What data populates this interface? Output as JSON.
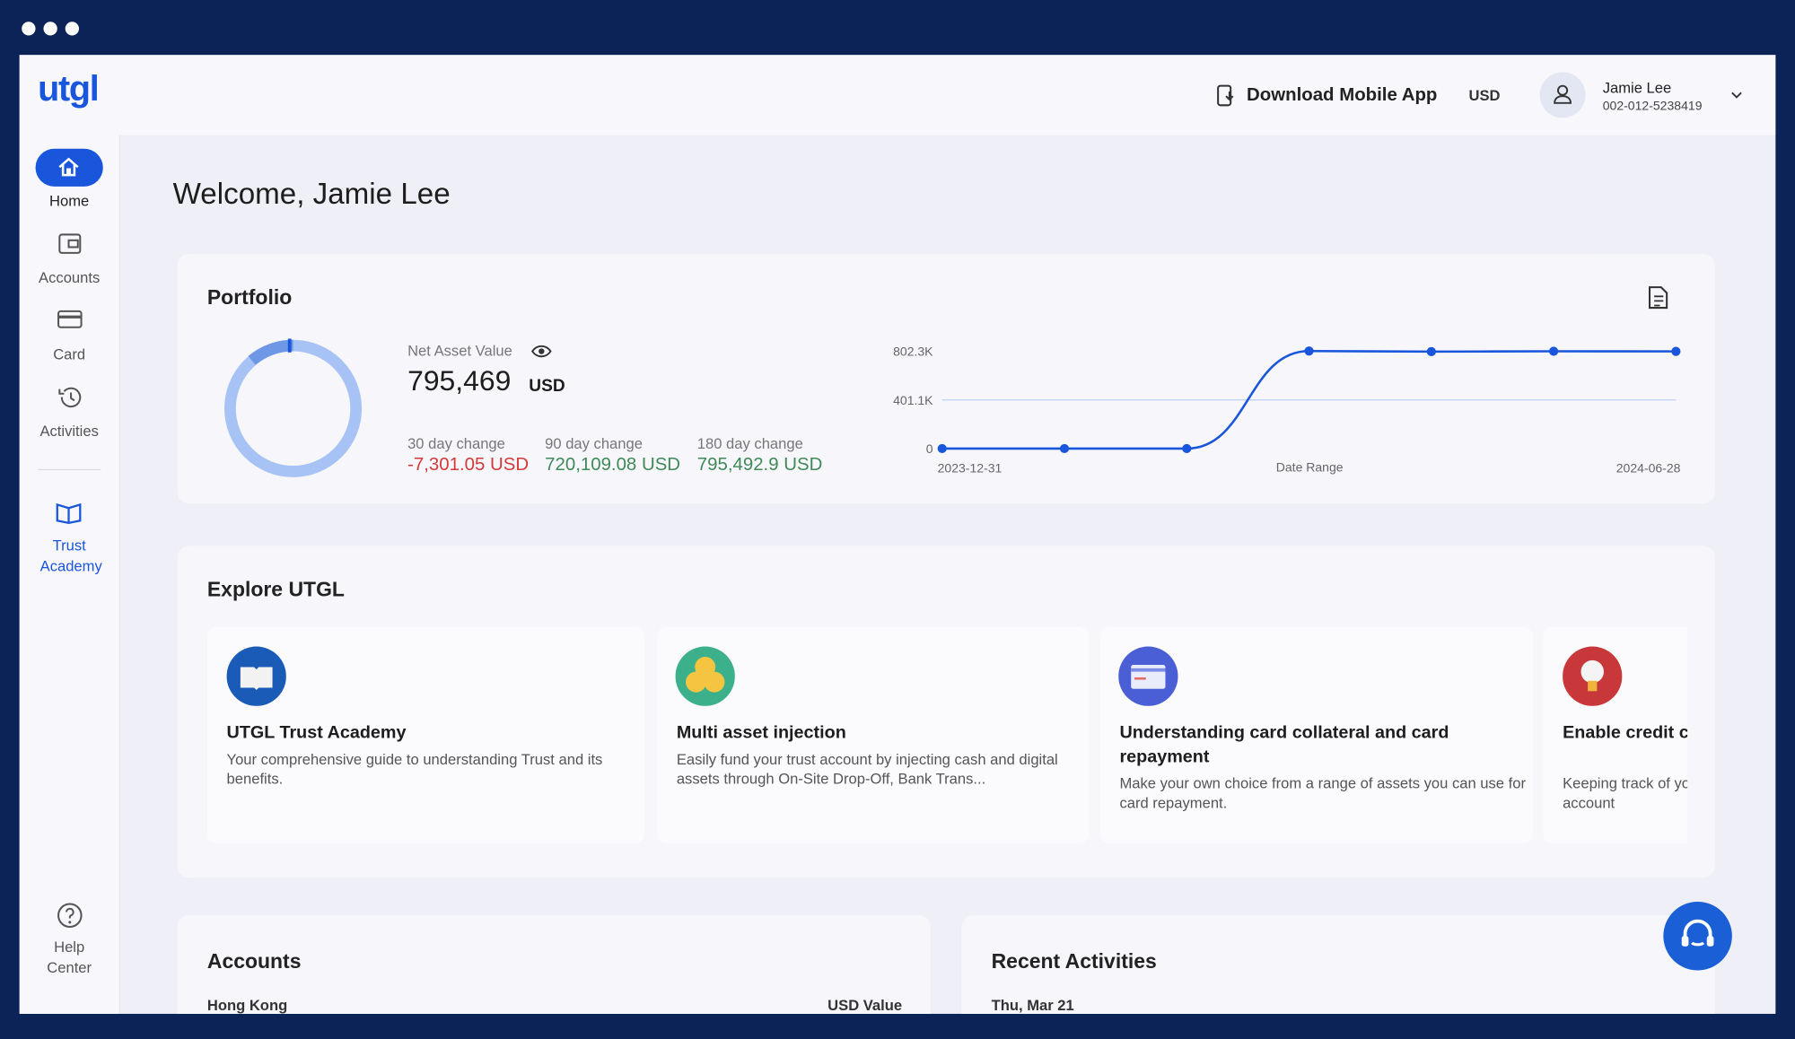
{
  "brand": "utgl",
  "header": {
    "download": "Download Mobile App",
    "currency": "USD",
    "user_name": "Jamie Lee",
    "user_id": "002-012-5238419"
  },
  "sidebar": {
    "items": [
      "Home",
      "Accounts",
      "Card",
      "Activities",
      "Trust Academy"
    ],
    "help": "Help Center"
  },
  "welcome": "Welcome, Jamie Lee",
  "portfolio": {
    "title": "Portfolio",
    "nav_label": "Net Asset Value",
    "nav_value": "795,469",
    "nav_unit": "USD",
    "changes": [
      {
        "label": "30 day change",
        "value": "-7,301.05 USD"
      },
      {
        "label": "90 day change",
        "value": "720,109.08 USD"
      },
      {
        "label": "180 day change",
        "value": "795,492.9 USD"
      }
    ]
  },
  "chart_data": {
    "type": "line",
    "x_label": "Date Range",
    "categories": [
      "2023-12-31",
      null,
      null,
      null,
      null,
      null,
      "2024-06-28"
    ],
    "series": [
      {
        "name": "Net Asset Value",
        "color": "#1a56db",
        "values": [
          0,
          0,
          0,
          805000,
          800000,
          803000,
          802000
        ]
      }
    ],
    "ylim": [
      0,
      850000
    ],
    "yticks": [
      0,
      {
        "value": 401100,
        "label": "401.1K"
      },
      {
        "value": 802300,
        "label": "802.3K"
      }
    ],
    "grid": true
  },
  "explore": {
    "title": "Explore UTGL",
    "cards": [
      {
        "title": "UTGL Trust Academy",
        "desc": "Your comprehensive guide to understanding Trust and its benefits."
      },
      {
        "title": "Multi asset injection",
        "desc": "Easily fund your trust account by injecting cash and digital assets through On-Site Drop-Off, Bank Trans..."
      },
      {
        "title": "Understanding card collateral and card repayment",
        "desc": "Make your own choice from a range of assets you can use for card repayment."
      },
      {
        "title": "Enable credit card security",
        "desc": "Keeping track of your card activities helps protect your account"
      }
    ]
  },
  "accounts": {
    "title": "Accounts",
    "region": "Hong Kong",
    "column": "USD Value"
  },
  "recent": {
    "title": "Recent Activities",
    "date": "Thu, Mar 21"
  }
}
